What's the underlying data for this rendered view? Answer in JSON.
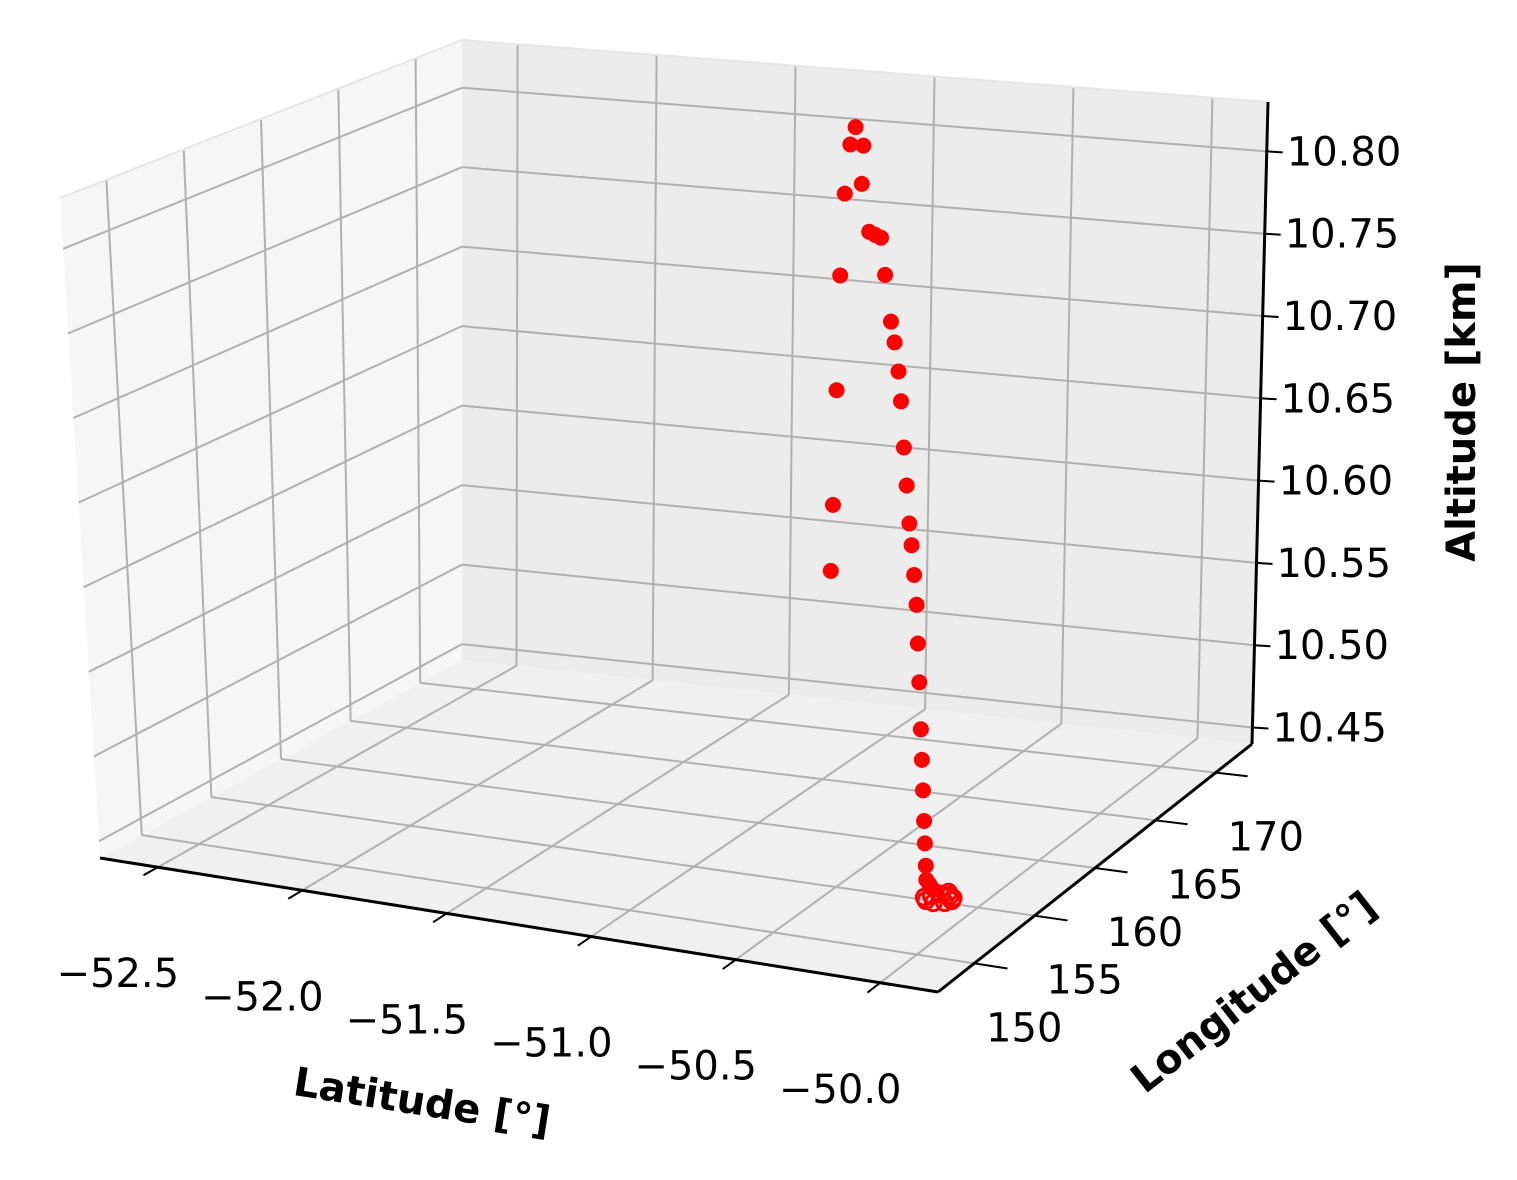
{
  "chart_data": {
    "type": "scatter",
    "projection": "3d",
    "title": "",
    "xlabel": "Latitude [°]",
    "ylabel": "Longitude [°]",
    "zlabel": "Altitude [km]",
    "xticks": [
      "−52.5",
      "−52.0",
      "−51.5",
      "−51.0",
      "−50.5",
      "−50.0"
    ],
    "xtick_values": [
      -52.5,
      -52.0,
      -51.5,
      -51.0,
      -50.5,
      -50.0
    ],
    "yticks": [
      "150",
      "155",
      "160",
      "165",
      "170"
    ],
    "ytick_values": [
      150,
      155,
      160,
      165,
      170
    ],
    "zticks": [
      "10.45",
      "10.50",
      "10.55",
      "10.60",
      "10.65",
      "10.70",
      "10.75",
      "10.80"
    ],
    "ztick_values": [
      10.45,
      10.5,
      10.55,
      10.6,
      10.65,
      10.7,
      10.75,
      10.8
    ],
    "xlim": [
      -52.7,
      -49.8
    ],
    "ylim": [
      147,
      173
    ],
    "zlim": [
      10.44,
      10.83
    ],
    "grid": true,
    "marker_color": "#ff0000",
    "points": [
      {
        "lat": -51.15,
        "lon": 170.5,
        "alt": 10.82
      },
      {
        "lat": -51.16,
        "lon": 170.3,
        "alt": 10.81
      },
      {
        "lat": -51.12,
        "lon": 170.4,
        "alt": 10.81
      },
      {
        "lat": -51.1,
        "lon": 169.8,
        "alt": 10.79
      },
      {
        "lat": -51.18,
        "lon": 170.2,
        "alt": 10.78
      },
      {
        "lat": -51.05,
        "lon": 169.2,
        "alt": 10.765
      },
      {
        "lat": -51.02,
        "lon": 169.0,
        "alt": 10.765
      },
      {
        "lat": -50.99,
        "lon": 168.8,
        "alt": 10.765
      },
      {
        "lat": -50.96,
        "lon": 168.4,
        "alt": 10.745
      },
      {
        "lat": -50.92,
        "lon": 167.9,
        "alt": 10.72
      },
      {
        "lat": -50.89,
        "lon": 167.5,
        "alt": 10.71
      },
      {
        "lat": -50.86,
        "lon": 167.1,
        "alt": 10.695
      },
      {
        "lat": -50.83,
        "lon": 166.6,
        "alt": 10.68
      },
      {
        "lat": -50.8,
        "lon": 166.1,
        "alt": 10.655
      },
      {
        "lat": -50.77,
        "lon": 165.6,
        "alt": 10.635
      },
      {
        "lat": -50.74,
        "lon": 165.1,
        "alt": 10.615
      },
      {
        "lat": -50.71,
        "lon": 164.6,
        "alt": 10.605
      },
      {
        "lat": -50.68,
        "lon": 164.1,
        "alt": 10.59
      },
      {
        "lat": -50.65,
        "lon": 163.6,
        "alt": 10.575
      },
      {
        "lat": -50.62,
        "lon": 163.0,
        "alt": 10.555
      },
      {
        "lat": -50.59,
        "lon": 162.4,
        "alt": 10.535
      },
      {
        "lat": -50.56,
        "lon": 161.8,
        "alt": 10.51
      },
      {
        "lat": -50.53,
        "lon": 161.2,
        "alt": 10.495
      },
      {
        "lat": -50.5,
        "lon": 160.6,
        "alt": 10.48
      },
      {
        "lat": -50.47,
        "lon": 160.0,
        "alt": 10.465
      },
      {
        "lat": -50.44,
        "lon": 159.4,
        "alt": 10.455
      },
      {
        "lat": -50.41,
        "lon": 158.8,
        "alt": 10.445
      },
      {
        "lat": -50.38,
        "lon": 158.2,
        "alt": 10.44
      },
      {
        "lat": -50.35,
        "lon": 157.8,
        "alt": 10.44
      },
      {
        "lat": -50.32,
        "lon": 157.4,
        "alt": 10.44
      },
      {
        "lat": -51.2,
        "lon": 170.1,
        "alt": 10.73
      },
      {
        "lat": -51.22,
        "lon": 170.0,
        "alt": 10.66
      },
      {
        "lat": -51.24,
        "lon": 169.9,
        "alt": 10.59
      },
      {
        "lat": -51.25,
        "lon": 169.8,
        "alt": 10.55
      }
    ],
    "loop_marks": [
      {
        "lat": -50.26,
        "lon": 157.3,
        "alt": 10.44
      },
      {
        "lat": -50.24,
        "lon": 157.0,
        "alt": 10.44
      },
      {
        "lat": -50.22,
        "lon": 156.8,
        "alt": 10.44
      },
      {
        "lat": -50.21,
        "lon": 156.5,
        "alt": 10.44
      },
      {
        "lat": -50.22,
        "lon": 156.2,
        "alt": 10.44
      },
      {
        "lat": -50.25,
        "lon": 156.0,
        "alt": 10.44
      },
      {
        "lat": -50.28,
        "lon": 156.1,
        "alt": 10.44
      },
      {
        "lat": -50.3,
        "lon": 156.4,
        "alt": 10.44
      },
      {
        "lat": -50.29,
        "lon": 156.7,
        "alt": 10.44
      },
      {
        "lat": -50.27,
        "lon": 157.0,
        "alt": 10.44
      }
    ]
  }
}
